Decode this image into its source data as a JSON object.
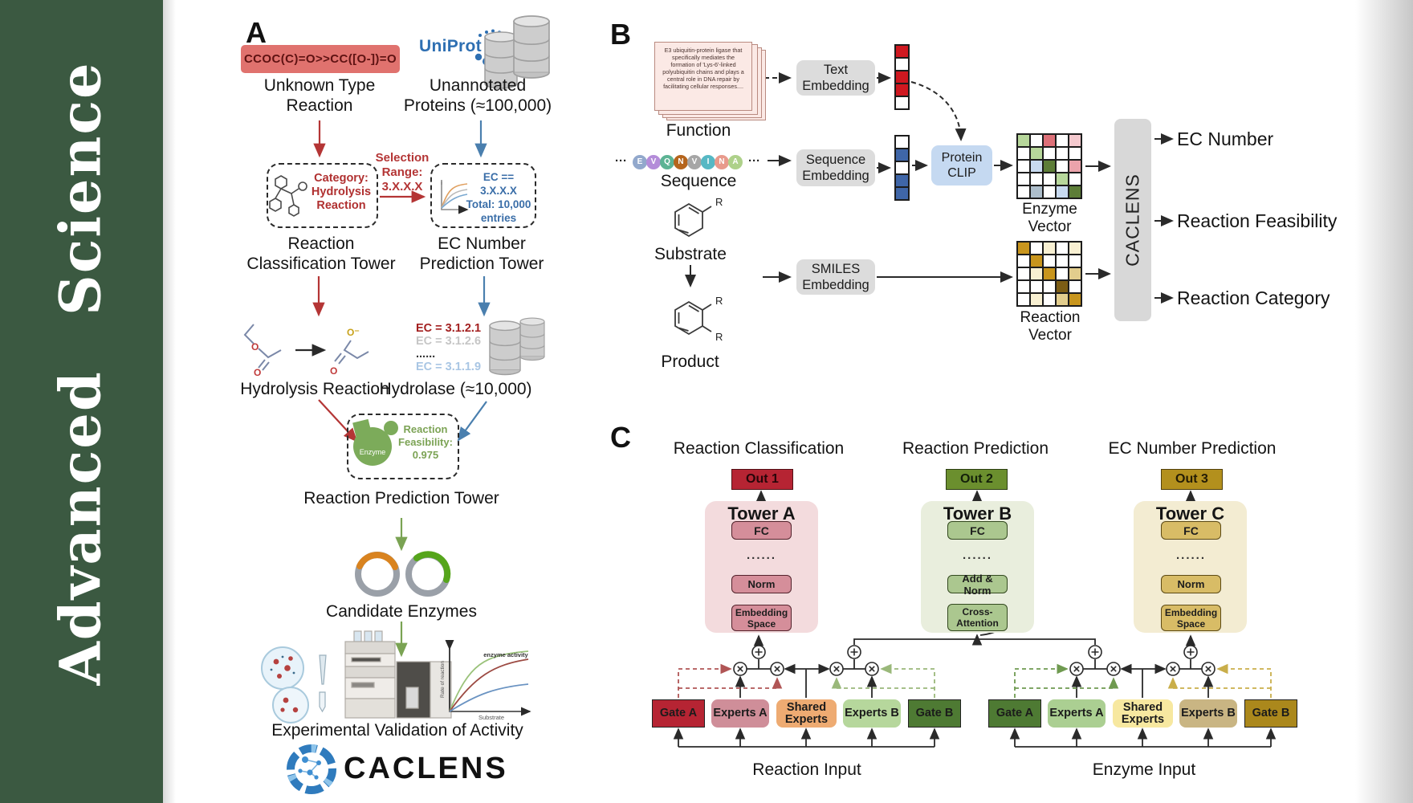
{
  "sidebar": {
    "brand": "Advanced Science"
  },
  "panelA": {
    "label": "A",
    "smiles": "CCOC(C)=O>>CC([O-])=O",
    "unknown1": "Unknown Type",
    "unknown2": "Reaction",
    "uniprot": "UniProt",
    "unann1": "Unannotated",
    "unann2": "Proteins (≈100,000)",
    "sel1": "Selection",
    "sel2": "Range:",
    "sel3": "3.X.X.X",
    "cat1": "Category:",
    "cat2": "Hydrolysis",
    "cat3": "Reaction",
    "ecb1": "EC == 3.X.X.X",
    "ecb2": "Total: 10,000",
    "ecb3": "entries",
    "rct1": "Reaction",
    "rct2": "Classification Tower",
    "ecpt1": "EC Number",
    "ecpt2": "Prediction Tower",
    "hydrolysis": "Hydrolysis Reaction",
    "ec_list": [
      "EC = 3.1.2.1",
      "EC = 3.1.2.6",
      "......",
      "EC = 3.1.1.9"
    ],
    "hydrolase": "Hydrolase (≈10,000)",
    "enzyme": "Enzyme",
    "feas1": "Reaction",
    "feas2": "Feasibility:",
    "feas3": "0.975",
    "rpt": "Reaction Prediction Tower",
    "candidates": "Candidate Enzymes",
    "plot": {
      "ylabel": "Rate of reaction",
      "xlabel": "Substrate",
      "annotation": "enzyme activity"
    },
    "validation": "Experimental Validation of Activity",
    "brand": "CACLENS"
  },
  "panelB": {
    "label": "B",
    "function_text": "E3 ubiquitin-protein ligase that specifically mediates the formation of 'Lys-6'-linked polyubiquitin chains and plays a central role in DNA repair by facilitating cellular responses....",
    "function_label": "Function",
    "seq_prefix": "···",
    "seq_suffix": "···",
    "sequence_letters": [
      "E",
      "V",
      "Q",
      "N",
      "V",
      "I",
      "N",
      "A"
    ],
    "sequence_colors": [
      "#92a8cc",
      "#b48cd9",
      "#5cb394",
      "#b5651d",
      "#a6a6a6",
      "#56b8c4",
      "#e89a8c",
      "#aed18a"
    ],
    "sequence_label": "Sequence",
    "substrate_label": "Substrate",
    "product_label": "Product",
    "r": "R",
    "text_embedding": "Text Embedding",
    "sequence_embedding": "Sequence Embedding",
    "smiles_embedding": "SMILES Embedding",
    "protein_clip": "Protein CLIP",
    "enzyme_vector_label": "Enzyme Vector",
    "reaction_vector_label": "Reaction Vector",
    "caclens": "CACLENS",
    "outputs": [
      "EC Number",
      "Reaction Feasibility",
      "Reaction Category"
    ],
    "text_vector": [
      "r",
      "w",
      "r",
      "r",
      "w"
    ],
    "seq_vector": [
      "w",
      "b",
      "w",
      "b",
      "b"
    ],
    "enzyme_matrix": [
      [
        "lg",
        "w",
        "rd",
        "w",
        "lp"
      ],
      [
        "w",
        "lg",
        "w",
        "w",
        "w"
      ],
      [
        "w",
        "lb",
        "dg",
        "w",
        "pk"
      ],
      [
        "w",
        "w",
        "w",
        "lg",
        "w"
      ],
      [
        "w",
        "gb",
        "w",
        "lb",
        "dg"
      ]
    ],
    "reaction_matrix": [
      [
        "gd",
        "w",
        "cr",
        "w",
        "cr"
      ],
      [
        "w",
        "gd",
        "w",
        "w",
        "w"
      ],
      [
        "w",
        "cr",
        "gd",
        "w",
        "tn"
      ],
      [
        "w",
        "w",
        "w",
        "do",
        "w"
      ],
      [
        "w",
        "cr",
        "w",
        "tn",
        "gd"
      ]
    ]
  },
  "panelC": {
    "label": "C",
    "headings": [
      "Reaction Classification",
      "Reaction Prediction",
      "EC Number Prediction"
    ],
    "outs": [
      "Out 1",
      "Out 2",
      "Out 3"
    ],
    "towers": [
      {
        "title": "Tower A",
        "fc": "FC",
        "dots": "......",
        "mid": "Norm",
        "bottom": "Embedding Space"
      },
      {
        "title": "Tower B",
        "fc": "FC",
        "dots": "......",
        "mid": "Add & Norm",
        "bottom": "Cross-Attention"
      },
      {
        "title": "Tower C",
        "fc": "FC",
        "dots": "......",
        "mid": "Norm",
        "bottom": "Embedding Space"
      }
    ],
    "moe_left": {
      "gate_a": "Gate A",
      "experts_a": "Experts A",
      "shared": "Shared Experts",
      "experts_b": "Experts B",
      "gate_b": "Gate B",
      "input": "Reaction Input"
    },
    "moe_right": {
      "gate_a": "Gate A",
      "experts_a": "Experts A",
      "shared": "Shared Experts",
      "experts_b": "Experts B",
      "gate_b": "Gate B",
      "input": "Enzyme Input"
    }
  },
  "palette": {
    "w": "#ffffff",
    "r": "#cf1820",
    "b": "#3f66a8",
    "lg": "#b7d79b",
    "rd": "#dd7078",
    "lp": "#f4c9ce",
    "pk": "#eba3ab",
    "dg": "#5d7d37",
    "lb": "#c8daf0",
    "gb": "#adbecb",
    "gd": "#c8951d",
    "cr": "#f8f0d2",
    "tn": "#e2cd8d",
    "do": "#7c5d14"
  }
}
